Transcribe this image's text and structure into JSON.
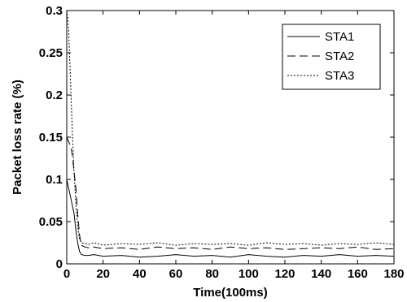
{
  "chart_data": {
    "type": "line",
    "title": "",
    "xlabel": "Time(100ms)",
    "ylabel": "Packet loss rate (%)",
    "xlim": [
      0,
      180
    ],
    "ylim": [
      0,
      0.3
    ],
    "xticks": [
      "0",
      "20",
      "40",
      "60",
      "80",
      "100",
      "120",
      "140",
      "160",
      "180"
    ],
    "yticks": [
      "0",
      "0.05",
      "0.1",
      "0.15",
      "0.2",
      "0.25",
      "0.3"
    ],
    "grid": false,
    "legend_position": "top-right",
    "series": [
      {
        "name": "STA1",
        "dash": "solid",
        "x": [
          0,
          1,
          2,
          3,
          4,
          5,
          6,
          7,
          8,
          10,
          12,
          15,
          20,
          30,
          40,
          50,
          60,
          70,
          80,
          90,
          100,
          110,
          120,
          130,
          140,
          150,
          160,
          170,
          180
        ],
        "y": [
          0.1,
          0.09,
          0.08,
          0.07,
          0.06,
          0.04,
          0.025,
          0.015,
          0.011,
          0.01,
          0.01,
          0.011,
          0.009,
          0.01,
          0.008,
          0.009,
          0.011,
          0.009,
          0.01,
          0.008,
          0.011,
          0.009,
          0.008,
          0.01,
          0.009,
          0.011,
          0.009,
          0.01,
          0.009
        ]
      },
      {
        "name": "STA2",
        "dash": "dash",
        "x": [
          0,
          1,
          2,
          3,
          4,
          5,
          6,
          7,
          8,
          10,
          12,
          15,
          20,
          30,
          40,
          50,
          60,
          70,
          80,
          90,
          100,
          110,
          120,
          130,
          140,
          150,
          160,
          170,
          180
        ],
        "y": [
          0.15,
          0.145,
          0.14,
          0.13,
          0.11,
          0.09,
          0.06,
          0.035,
          0.022,
          0.02,
          0.019,
          0.02,
          0.018,
          0.019,
          0.017,
          0.02,
          0.018,
          0.019,
          0.017,
          0.02,
          0.018,
          0.019,
          0.017,
          0.018,
          0.019,
          0.018,
          0.02,
          0.017,
          0.018
        ]
      },
      {
        "name": "STA3",
        "dash": "dot",
        "x": [
          0,
          1,
          2,
          3,
          4,
          5,
          6,
          7,
          8,
          10,
          12,
          15,
          20,
          30,
          40,
          50,
          60,
          70,
          80,
          90,
          100,
          110,
          120,
          130,
          140,
          150,
          160,
          170,
          180
        ],
        "y": [
          0.3,
          0.28,
          0.22,
          0.16,
          0.11,
          0.07,
          0.045,
          0.03,
          0.025,
          0.024,
          0.023,
          0.025,
          0.022,
          0.024,
          0.023,
          0.025,
          0.022,
          0.024,
          0.023,
          0.024,
          0.022,
          0.025,
          0.023,
          0.024,
          0.022,
          0.024,
          0.023,
          0.025,
          0.023
        ]
      }
    ]
  }
}
